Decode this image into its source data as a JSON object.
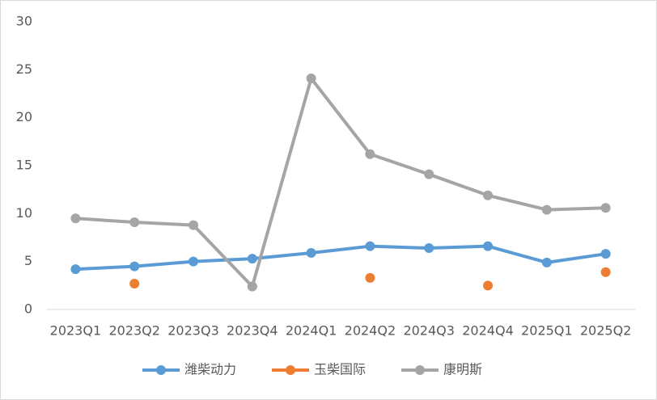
{
  "chart_data": {
    "type": "line",
    "categories": [
      "2023Q1",
      "2023Q2",
      "2023Q3",
      "2023Q4",
      "2024Q1",
      "2024Q2",
      "2024Q3",
      "2024Q4",
      "2025Q1",
      "2025Q2"
    ],
    "series": [
      {
        "name": "潍柴动力",
        "color": "#5b9bd5",
        "values": [
          4.2,
          4.5,
          5.0,
          5.3,
          5.9,
          6.6,
          6.4,
          6.6,
          4.9,
          5.8
        ]
      },
      {
        "name": "玉柴国际",
        "color": "#ed7d31",
        "values": [
          null,
          2.7,
          null,
          2.4,
          null,
          3.3,
          null,
          2.5,
          null,
          3.9
        ]
      },
      {
        "name": "康明斯",
        "color": "#a5a5a5",
        "values": [
          9.5,
          9.1,
          8.8,
          2.4,
          24.1,
          16.2,
          14.1,
          11.9,
          10.4,
          10.6
        ]
      }
    ],
    "ylim": [
      0,
      30
    ],
    "yticks": [
      0,
      5,
      10,
      15,
      20,
      25,
      30
    ],
    "grid": false,
    "legend": "bottom"
  }
}
